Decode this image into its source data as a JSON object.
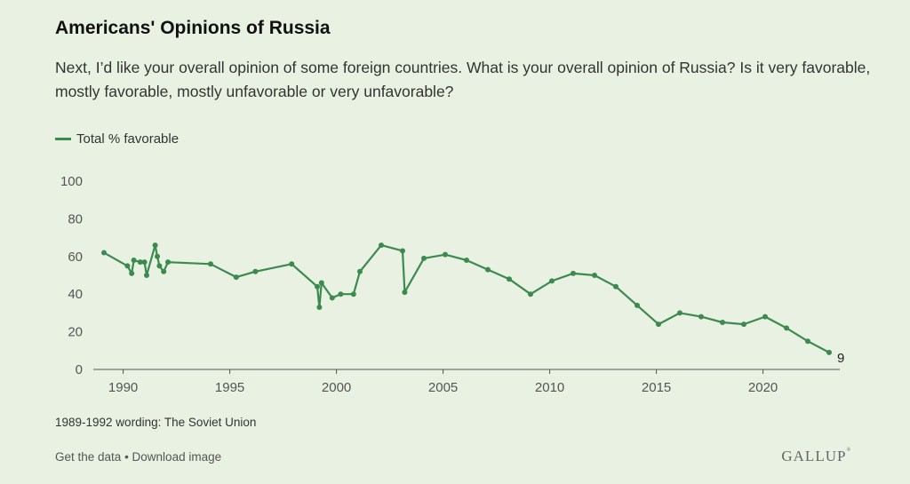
{
  "header": {
    "title": "Americans' Opinions of Russia",
    "question": "Next, I’d like your overall opinion of some foreign countries. What is your overall opinion of Russia? Is it very favorable, mostly favorable, mostly unfavorable or very unfavorable?"
  },
  "footnote": "1989-1992 wording: The Soviet Union",
  "footer": {
    "get_data": "Get the data",
    "separator": " • ",
    "download": "Download image",
    "logo": "GALLUP",
    "logo_mark": "®"
  },
  "colors": {
    "line": "#3d8a4f",
    "background": "#e9f1e2"
  },
  "chart_data": {
    "type": "line",
    "title": "Americans' Opinions of Russia",
    "ylim": [
      0,
      100
    ],
    "yticks": [
      0,
      20,
      40,
      60,
      80,
      100
    ],
    "xlim": [
      1988.6,
      2023.6
    ],
    "xticks": [
      1990,
      1995,
      2000,
      2005,
      2010,
      2015,
      2020
    ],
    "end_label": "9",
    "series": [
      {
        "name": "Total % favorable",
        "color": "#3d8a4f",
        "x": [
          1989.1,
          1990.2,
          1990.4,
          1990.5,
          1990.8,
          1991.0,
          1991.1,
          1991.5,
          1991.6,
          1991.7,
          1991.9,
          1992.1,
          1994.1,
          1995.3,
          1996.2,
          1997.9,
          1999.1,
          1999.2,
          1999.3,
          1999.8,
          2000.2,
          2000.8,
          2001.1,
          2002.1,
          2003.1,
          2003.2,
          2004.1,
          2005.1,
          2006.1,
          2007.1,
          2008.1,
          2009.1,
          2010.1,
          2011.1,
          2012.1,
          2013.1,
          2014.1,
          2015.1,
          2016.1,
          2017.1,
          2018.1,
          2019.1,
          2020.1,
          2021.1,
          2022.1,
          2023.1
        ],
        "y": [
          62,
          55,
          51,
          58,
          57,
          57,
          50,
          66,
          60,
          55,
          52,
          57,
          56,
          49,
          52,
          56,
          44,
          33,
          46,
          38,
          40,
          40,
          52,
          66,
          63,
          41,
          59,
          61,
          58,
          53,
          48,
          40,
          47,
          51,
          50,
          44,
          34,
          24,
          30,
          28,
          25,
          24,
          28,
          22,
          15,
          9
        ]
      }
    ]
  }
}
